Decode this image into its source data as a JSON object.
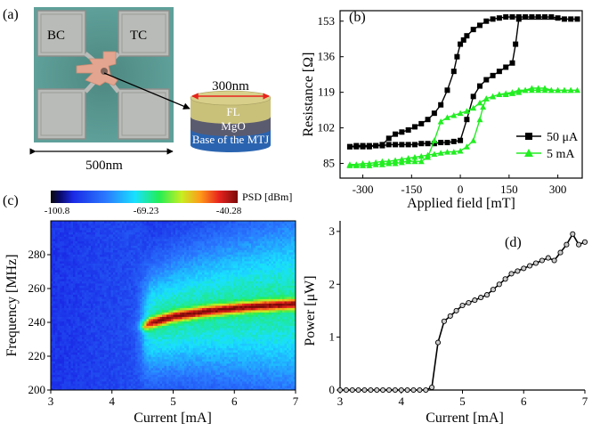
{
  "panels": {
    "a": {
      "label": "(a)",
      "pad_labels": [
        "BC",
        "TC"
      ],
      "scale_bar": "500nm",
      "stack_width_label": "300nm",
      "layers": [
        "FL",
        "MgO",
        "Base of the MTJ"
      ],
      "colors": {
        "chip": "#5fa09a",
        "pad": "#b9bbb8",
        "center": "#e3a58f",
        "fl": "#c9c07a",
        "mgo": "#5b5b6f",
        "base": "#2a64b0",
        "arrow": "#e8231e"
      }
    },
    "b": {
      "label": "(b)"
    },
    "c": {
      "label": "(c)",
      "colorbar_title": "PSD [dBm]",
      "colorbar_ticks": [
        "-100.8",
        "-69.23",
        "-40.28"
      ]
    },
    "d": {
      "label": "(d)"
    }
  },
  "chart_data": [
    {
      "panel": "b",
      "type": "line",
      "xlabel": "Applied field [mT]",
      "ylabel": "Resistance [Ω]",
      "xlim": [
        -370,
        375
      ],
      "ylim": [
        78,
        158
      ],
      "xticks": [
        -300,
        -150,
        0,
        150,
        300
      ],
      "xtick_labels": [
        "-300",
        "-150",
        "0",
        "150",
        "300"
      ],
      "yticks": [
        85,
        102,
        119,
        136,
        153
      ],
      "ytick_labels": [
        "85",
        "102",
        "119",
        "136",
        "153"
      ],
      "legend_position": "bottom-right",
      "series": [
        {
          "name": "50 μA",
          "color": "#000000",
          "marker": "square",
          "x": [
            -340,
            -320,
            -300,
            -280,
            -260,
            -240,
            -220,
            -200,
            -180,
            -160,
            -140,
            -120,
            -100,
            -80,
            -60,
            -40,
            -20,
            -10,
            0,
            10,
            20,
            40,
            60,
            80,
            100,
            120,
            140,
            160,
            180,
            200,
            220,
            240,
            260,
            280,
            300,
            320,
            340,
            360,
            180,
            170,
            160,
            140,
            120,
            100,
            80,
            60,
            40,
            20,
            0,
            -20,
            -40,
            -60,
            -80,
            -100,
            -120,
            -140,
            -160,
            -180,
            -200,
            -220,
            -240,
            -260,
            -280,
            -300,
            -320,
            -340
          ],
          "y": [
            93,
            93,
            93,
            93,
            93.5,
            94,
            97,
            99,
            100,
            101,
            102.5,
            104,
            106,
            109,
            113,
            120,
            129,
            136,
            142,
            144,
            146,
            149,
            151,
            153,
            154,
            154.5,
            155,
            155,
            155,
            155,
            155,
            155,
            155,
            155,
            154.5,
            154,
            154,
            154,
            154,
            142,
            133,
            131,
            129,
            127,
            125,
            122,
            117,
            106,
            96,
            95.5,
            95,
            95,
            94.5,
            94.5,
            94.5,
            94,
            94,
            94,
            94,
            94,
            93.5,
            93.5,
            93.5,
            93.5,
            93.5,
            93
          ]
        },
        {
          "name": "5 mA",
          "color": "#22ee22",
          "marker": "triangle",
          "x": [
            -340,
            -320,
            -300,
            -280,
            -260,
            -240,
            -220,
            -200,
            -180,
            -160,
            -140,
            -120,
            -100,
            -80,
            -60,
            -40,
            -20,
            0,
            20,
            40,
            60,
            80,
            100,
            120,
            140,
            160,
            180,
            200,
            220,
            240,
            260,
            280,
            300,
            320,
            340,
            360,
            340,
            320,
            300,
            280,
            260,
            240,
            220,
            200,
            180,
            160,
            140,
            120,
            100,
            80,
            70,
            60,
            40,
            20,
            0,
            -20,
            -40,
            -60,
            -80,
            -100,
            -120,
            -140,
            -160,
            -180,
            -200,
            -220,
            -240,
            -260,
            -280,
            -300,
            -320,
            -340
          ],
          "y": [
            84,
            84,
            84,
            84,
            84.5,
            84.5,
            85,
            85,
            85.5,
            86,
            86,
            86,
            88,
            96,
            105,
            107,
            108,
            109,
            110,
            111.5,
            114,
            116,
            117,
            118,
            118.5,
            119,
            120,
            120,
            120,
            120,
            120,
            120,
            120,
            120,
            120,
            120,
            120,
            120,
            120,
            120,
            121,
            121,
            121,
            120,
            119,
            118.5,
            118,
            118,
            117,
            116,
            112,
            106,
            96,
            93,
            91,
            90.5,
            90.5,
            90,
            89.5,
            89,
            88.5,
            88,
            87.5,
            87,
            86.5,
            86,
            86,
            85.5,
            85,
            85,
            84.5,
            84.5
          ]
        }
      ]
    },
    {
      "panel": "c",
      "type": "heatmap",
      "xlabel": "Current [mA]",
      "ylabel": "Frequency [MHz]",
      "xlim": [
        3,
        7
      ],
      "ylim": [
        200,
        300
      ],
      "xticks": [
        3,
        4,
        5,
        6,
        7
      ],
      "xtick_labels": [
        "3",
        "4",
        "5",
        "6",
        "7"
      ],
      "yticks": [
        200,
        220,
        240,
        260,
        280
      ],
      "ytick_labels": [
        "200",
        "220",
        "240",
        "260",
        "280"
      ],
      "zlim": [
        -100.8,
        -40.28
      ],
      "peak_frequency": {
        "current": [
          4.55,
          4.6,
          4.8,
          5.0,
          5.5,
          6.0,
          6.5,
          7.0
        ],
        "frequency": [
          238,
          239.5,
          241.5,
          243.5,
          246.5,
          248.5,
          250,
          251
        ]
      }
    },
    {
      "panel": "d",
      "type": "line",
      "xlabel": "Current [mA]",
      "ylabel": "Power [μW]",
      "xlim": [
        3,
        7
      ],
      "ylim": [
        0,
        3.2
      ],
      "xticks": [
        3,
        4,
        5,
        6,
        7
      ],
      "xtick_labels": [
        "3",
        "4",
        "5",
        "6",
        "7"
      ],
      "yticks": [
        0,
        1,
        2,
        3
      ],
      "ytick_labels": [
        "0",
        "1",
        "2",
        "3"
      ],
      "series": [
        {
          "name": "Power",
          "color": "#000000",
          "marker": "circle",
          "x": [
            3.0,
            3.1,
            3.2,
            3.3,
            3.4,
            3.5,
            3.6,
            3.7,
            3.8,
            3.9,
            4.0,
            4.1,
            4.2,
            4.3,
            4.4,
            4.5,
            4.6,
            4.7,
            4.8,
            4.9,
            5.0,
            5.1,
            5.2,
            5.3,
            5.4,
            5.5,
            5.6,
            5.7,
            5.8,
            5.9,
            6.0,
            6.1,
            6.2,
            6.3,
            6.4,
            6.5,
            6.6,
            6.7,
            6.8,
            6.9,
            7.0
          ],
          "y": [
            0,
            0,
            0,
            0,
            0,
            0,
            0,
            0,
            0,
            0,
            0,
            0,
            0,
            0,
            0,
            0.05,
            0.9,
            1.3,
            1.4,
            1.5,
            1.6,
            1.65,
            1.7,
            1.75,
            1.8,
            1.9,
            2.0,
            2.1,
            2.2,
            2.25,
            2.3,
            2.35,
            2.4,
            2.45,
            2.5,
            2.45,
            2.6,
            2.75,
            2.95,
            2.75,
            2.8
          ]
        }
      ]
    }
  ]
}
